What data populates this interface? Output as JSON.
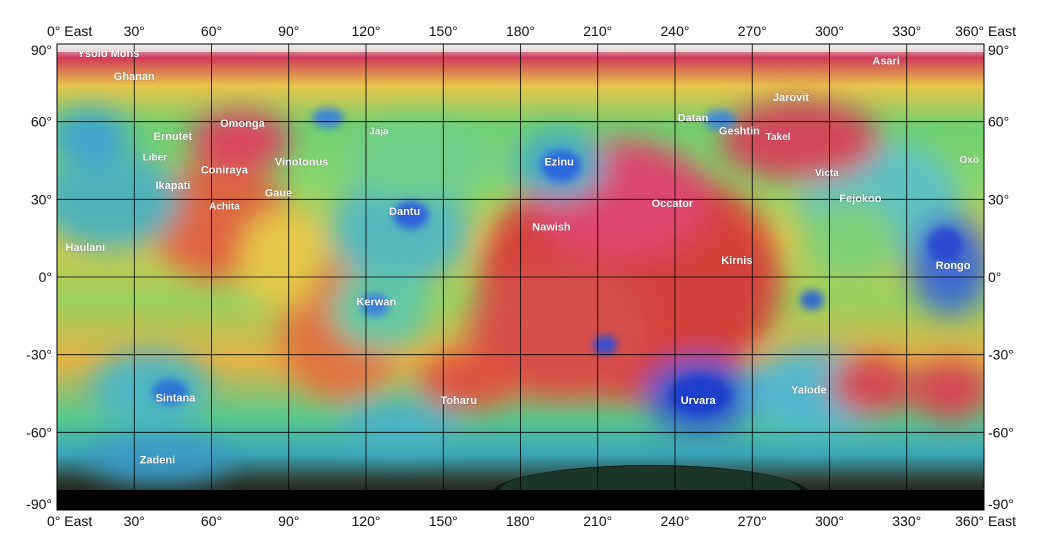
{
  "map": {
    "x_axis_ticks": [
      "0° East",
      "30°",
      "60°",
      "90°",
      "120°",
      "150°",
      "180°",
      "210°",
      "240°",
      "270°",
      "300°",
      "330°",
      "360° East"
    ],
    "y_axis_ticks": [
      "90°",
      "60°",
      "30°",
      "0°",
      "-30°",
      "-60°",
      "-90°"
    ],
    "features": [
      {
        "name": "Ysolo Mons",
        "lon": 8,
        "lat": 85,
        "size": 11
      },
      {
        "name": "Ghanan",
        "lon": 30,
        "lat": 76,
        "size": 11
      },
      {
        "name": "Asari",
        "lon": 322,
        "lat": 82,
        "size": 11
      },
      {
        "name": "Jarovit",
        "lon": 285,
        "lat": 68,
        "size": 11
      },
      {
        "name": "Omonga",
        "lon": 72,
        "lat": 58,
        "size": 11
      },
      {
        "name": "Ernutet",
        "lon": 45,
        "lat": 53,
        "size": 11
      },
      {
        "name": "Jaja",
        "lon": 125,
        "lat": 55,
        "size": 10
      },
      {
        "name": "Dantu",
        "lon": 135,
        "lat": 24,
        "size": 11
      },
      {
        "name": "Datan",
        "lon": 247,
        "lat": 60,
        "size": 11
      },
      {
        "name": "Geshtin",
        "lon": 265,
        "lat": 55,
        "size": 11
      },
      {
        "name": "Takel",
        "lon": 280,
        "lat": 53,
        "size": 10
      },
      {
        "name": "Liber",
        "lon": 38,
        "lat": 45,
        "size": 10
      },
      {
        "name": "Coniraya",
        "lon": 65,
        "lat": 40,
        "size": 11
      },
      {
        "name": "Vinotonus",
        "lon": 95,
        "lat": 43,
        "size": 11
      },
      {
        "name": "Ezinu",
        "lon": 195,
        "lat": 43,
        "size": 11
      },
      {
        "name": "Oxo",
        "lon": 358,
        "lat": 44,
        "size": 10
      },
      {
        "name": "Ikapati",
        "lon": 45,
        "lat": 34,
        "size": 11
      },
      {
        "name": "Victa",
        "lon": 299,
        "lat": 39,
        "size": 10
      },
      {
        "name": "Gaue",
        "lon": 86,
        "lat": 31,
        "size": 11
      },
      {
        "name": "Fejokoo",
        "lon": 312,
        "lat": 29,
        "size": 11
      },
      {
        "name": "Achita",
        "lon": 65,
        "lat": 26,
        "size": 10
      },
      {
        "name": "Occator",
        "lon": 239,
        "lat": 27,
        "size": 11
      },
      {
        "name": "Nawish",
        "lon": 192,
        "lat": 18,
        "size": 11
      },
      {
        "name": "Haulani",
        "lon": 11,
        "lat": 10,
        "size": 11
      },
      {
        "name": "Kirnis",
        "lon": 264,
        "lat": 5,
        "size": 11
      },
      {
        "name": "Rongo",
        "lon": 348,
        "lat": 3,
        "size": 11
      },
      {
        "name": "Kerwan",
        "lon": 124,
        "lat": -11,
        "size": 11
      },
      {
        "name": "Sintana",
        "lon": 46,
        "lat": -48,
        "size": 11
      },
      {
        "name": "Toharu",
        "lon": 156,
        "lat": -49,
        "size": 11
      },
      {
        "name": "Urvara",
        "lon": 249,
        "lat": -49,
        "size": 11
      },
      {
        "name": "Yalode",
        "lon": 292,
        "lat": -45,
        "size": 11
      },
      {
        "name": "Zadeni",
        "lon": 39,
        "lat": -72,
        "size": 11
      }
    ]
  }
}
